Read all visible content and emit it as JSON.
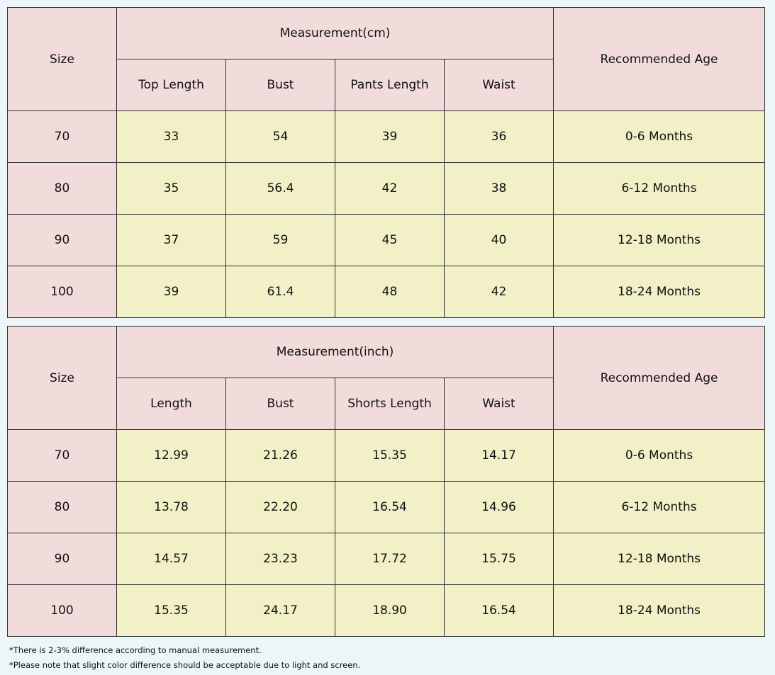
{
  "tables": [
    {
      "size_header": "Size",
      "measure_header": "Measurement(cm)",
      "age_header": "Recommended Age",
      "columns": [
        "Top Length",
        "Bust",
        "Pants Length",
        "Waist"
      ],
      "rows": [
        [
          "70",
          "33",
          "54",
          "39",
          "36",
          "0-6 Months"
        ],
        [
          "80",
          "35",
          "56.4",
          "42",
          "38",
          "6-12 Months"
        ],
        [
          "90",
          "37",
          "59",
          "45",
          "40",
          "12-18 Months"
        ],
        [
          "100",
          "39",
          "61.4",
          "48",
          "42",
          "18-24 Months"
        ]
      ]
    },
    {
      "size_header": "Size",
      "measure_header": "Measurement(inch)",
      "age_header": "Recommended Age",
      "columns": [
        "Length",
        "Bust",
        "Shorts Length",
        "Waist"
      ],
      "rows": [
        [
          "70",
          "12.99",
          "21.26",
          "15.35",
          "14.17",
          "0-6 Months"
        ],
        [
          "80",
          "13.78",
          "22.20",
          "16.54",
          "14.96",
          "6-12 Months"
        ],
        [
          "90",
          "14.57",
          "23.23",
          "17.72",
          "15.75",
          "12-18 Months"
        ],
        [
          "100",
          "15.35",
          "24.17",
          "18.90",
          "16.54",
          "18-24 Months"
        ]
      ]
    }
  ],
  "notes": [
    "*There is 2-3% difference according to manual measurement.",
    "*Please note that slight color difference should be acceptable due to light and screen."
  ]
}
